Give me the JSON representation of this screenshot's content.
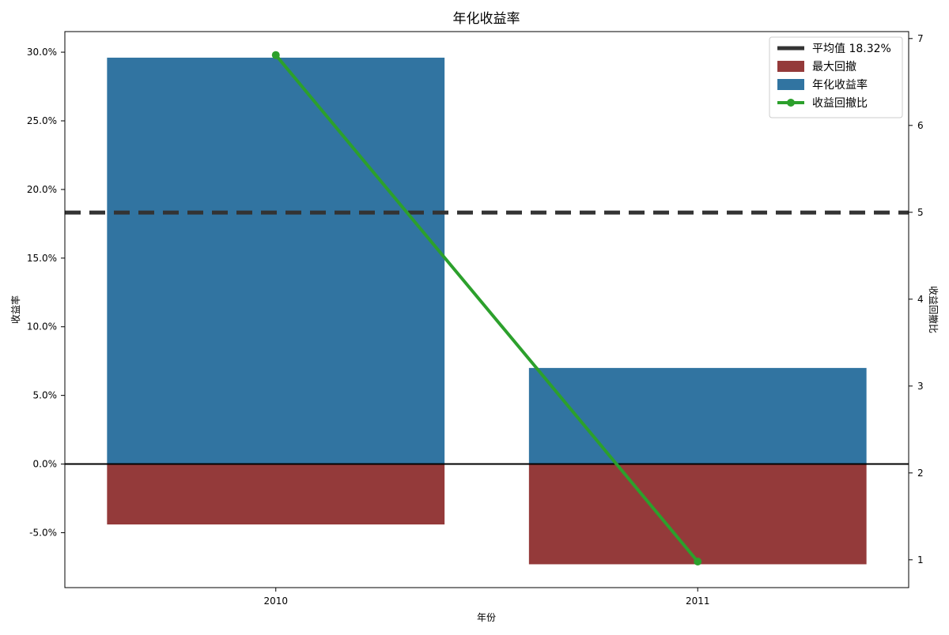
{
  "chart_data": {
    "type": "bar",
    "title": "年化收益率",
    "xlabel": "年份",
    "ylabel": "收益率",
    "y2label": "收益回撤比",
    "categories": [
      "2010",
      "2011"
    ],
    "ylim": [
      -9.0,
      31.5
    ],
    "yticks": [
      -5,
      0,
      5,
      10,
      15,
      20,
      25,
      30
    ],
    "ytick_labels": [
      "-5.0%",
      "0.0%",
      "5.0%",
      "10.0%",
      "15.0%",
      "20.0%",
      "25.0%",
      "30.0%"
    ],
    "y2lim": [
      0.68,
      7.08
    ],
    "y2ticks": [
      1,
      2,
      3,
      4,
      5,
      6,
      7
    ],
    "y2tick_labels": [
      "1",
      "2",
      "3",
      "4",
      "5",
      "6",
      "7"
    ],
    "grid": false,
    "legend_position": "top-right",
    "series": [
      {
        "name": "年化收益率",
        "kind": "bar",
        "values": [
          29.6,
          7.0
        ],
        "color": "#3174a1"
      },
      {
        "name": "最大回撤",
        "kind": "bar",
        "values": [
          -4.4,
          -7.3
        ],
        "color": "#943a3a"
      },
      {
        "name": "收益回撤比",
        "kind": "line",
        "axis": "right",
        "values": [
          6.81,
          0.98
        ],
        "color": "#2ca02c"
      }
    ],
    "reference_lines": [
      {
        "name": "平均值 18.32%",
        "value": 18.32,
        "style": "dashed",
        "color": "#333333"
      },
      {
        "value": 0,
        "style": "solid",
        "color": "#000000"
      }
    ],
    "legend": [
      {
        "label": "平均值 18.32%",
        "symbol": "dash",
        "color": "#333333"
      },
      {
        "label": "最大回撤",
        "symbol": "patch",
        "color": "#943a3a"
      },
      {
        "label": "年化收益率",
        "symbol": "patch",
        "color": "#3174a1"
      },
      {
        "label": "收益回撤比",
        "symbol": "line-marker",
        "color": "#2ca02c"
      }
    ]
  }
}
